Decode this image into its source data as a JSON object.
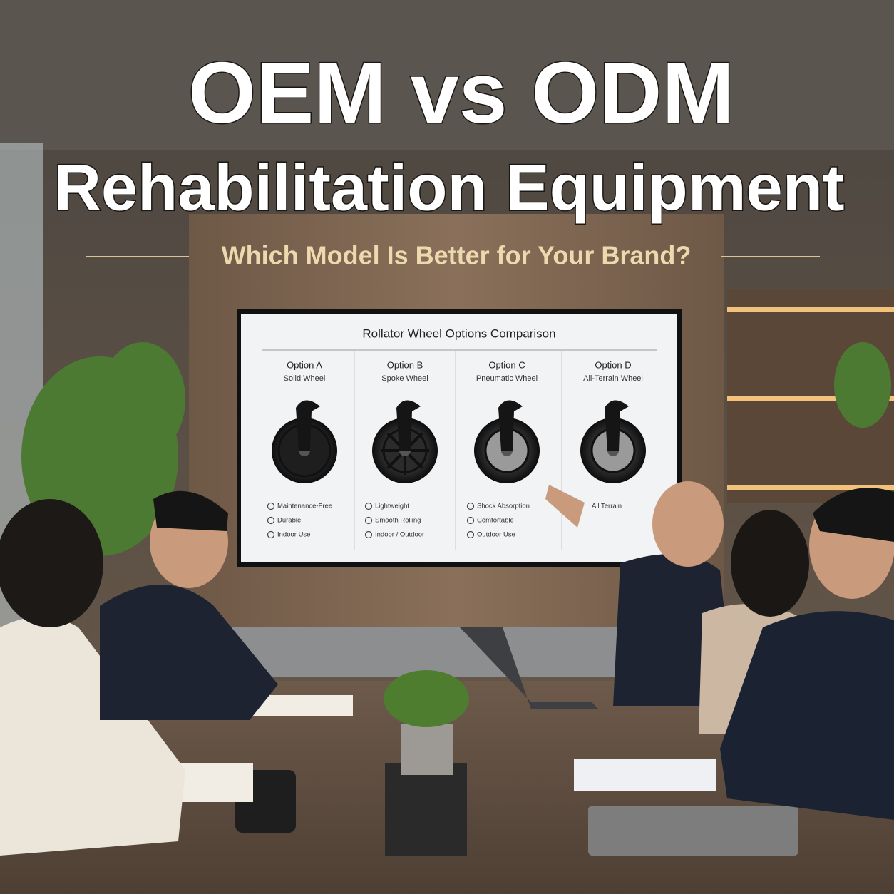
{
  "header": {
    "title": "OEM vs ODM",
    "subtitle": "Rehabilitation Equipment",
    "tagline": "Which Model Is Better for Your Brand?"
  },
  "screen": {
    "title": "Rollator Wheel Options Comparison",
    "options": [
      {
        "name": "Option A",
        "type": "Solid Wheel",
        "features": [
          "Maintenance-Free",
          "Durable",
          "Indoor Use"
        ]
      },
      {
        "name": "Option B",
        "type": "Spoke Wheel",
        "features": [
          "Lightweight",
          "Smooth Rolling",
          "Indoor / Outdoor"
        ]
      },
      {
        "name": "Option C",
        "type": "Pneumatic Wheel",
        "features": [
          "Shock Absorption",
          "Comfortable",
          "Outdoor Use"
        ]
      },
      {
        "name": "Option D",
        "type": "All-Terrain Wheel",
        "features": [
          "All Terrain"
        ]
      }
    ]
  }
}
